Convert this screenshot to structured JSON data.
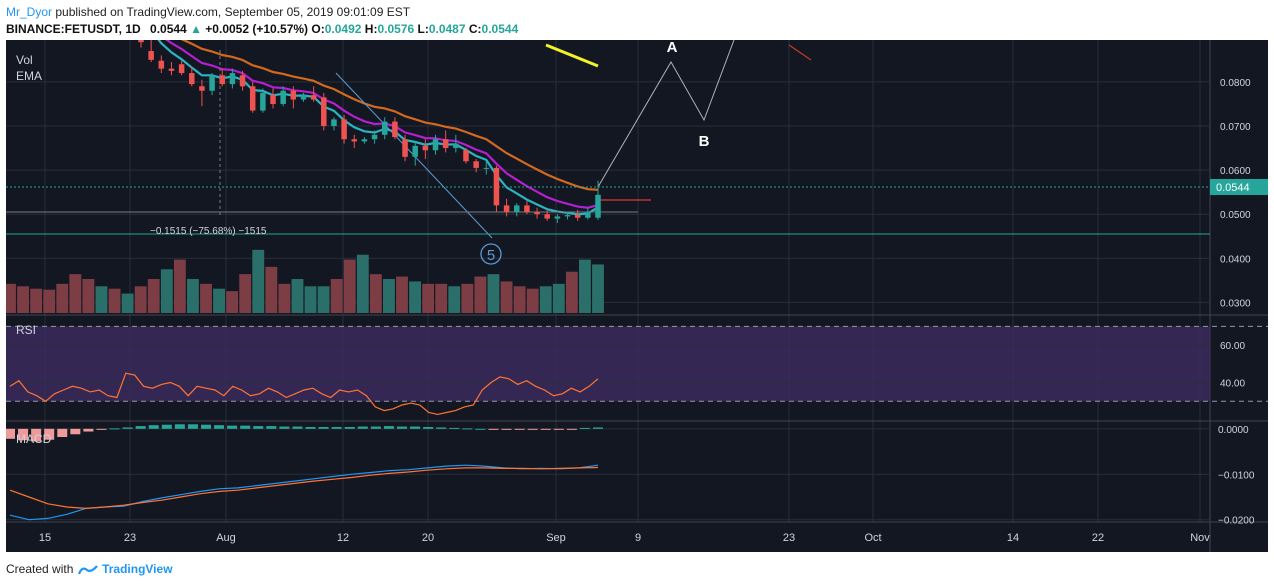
{
  "header": {
    "user": "Mr_Dyor",
    "published": "published on TradingView.com, September 05, 2019 09:01:09 EST",
    "symbol": "BINANCE:FETUSDT, 1D",
    "last": "0.0544",
    "change": "+0.0052 (+10.57%)",
    "o_label": "O:",
    "o": "0.0492",
    "h_label": "H:",
    "h": "0.0576",
    "l_label": "L:",
    "l": "0.0487",
    "c_label": "C:",
    "c": "0.0544"
  },
  "footer": {
    "created": "Created with",
    "brand": "TradingView"
  },
  "colors": {
    "bg": "#131722",
    "grid": "#2a2e39",
    "up": "#26a69a",
    "down": "#ef5350",
    "ema_fast": "#2bb5c3",
    "ema_mid": "#b31fd1",
    "ema_slow": "#d2691e",
    "yellow": "#f2f228",
    "rsi_line": "#ff7433",
    "rsi_band": "#3b2a5c",
    "macd_line": "#2196f3",
    "signal_line": "#ff7433",
    "price_label": "#26a69a"
  },
  "chart_data": [
    {
      "type": "candlestick",
      "title": "BINANCE:FETUSDT, 1D",
      "pane_labels": [
        "Vol",
        "EMA"
      ],
      "x_tick_labels": [
        "15",
        "23",
        "Aug",
        "12",
        "20",
        "Sep",
        "9",
        "23",
        "Oct",
        "14",
        "22",
        "Nov"
      ],
      "y_tick_labels": [
        "0.0800",
        "0.0700",
        "0.0600",
        "0.0500",
        "0.0400",
        "0.0300"
      ],
      "ylim": [
        0.0276,
        0.0895
      ],
      "last_price_label": "0.0544",
      "annotations": {
        "measure": "−0.1515 (−75.68%) −1515",
        "wave_5": "5",
        "label_a": "A",
        "label_b": "B"
      },
      "candles": [
        {
          "o": 0.0905,
          "h": 0.0915,
          "l": 0.0878,
          "c": 0.089
        },
        {
          "o": 0.087,
          "h": 0.0905,
          "l": 0.0845,
          "c": 0.085
        },
        {
          "o": 0.0848,
          "h": 0.086,
          "l": 0.082,
          "c": 0.083
        },
        {
          "o": 0.083,
          "h": 0.0845,
          "l": 0.0815,
          "c": 0.0825
        },
        {
          "o": 0.084,
          "h": 0.0848,
          "l": 0.0815,
          "c": 0.082
        },
        {
          "o": 0.082,
          "h": 0.0835,
          "l": 0.079,
          "c": 0.0795
        },
        {
          "o": 0.079,
          "h": 0.0805,
          "l": 0.0745,
          "c": 0.078
        },
        {
          "o": 0.078,
          "h": 0.082,
          "l": 0.077,
          "c": 0.0815
        },
        {
          "o": 0.0815,
          "h": 0.083,
          "l": 0.079,
          "c": 0.0795
        },
        {
          "o": 0.0795,
          "h": 0.083,
          "l": 0.0785,
          "c": 0.082
        },
        {
          "o": 0.0815,
          "h": 0.0825,
          "l": 0.078,
          "c": 0.079
        },
        {
          "o": 0.079,
          "h": 0.08,
          "l": 0.073,
          "c": 0.0735
        },
        {
          "o": 0.0735,
          "h": 0.0785,
          "l": 0.073,
          "c": 0.0775
        },
        {
          "o": 0.077,
          "h": 0.0785,
          "l": 0.074,
          "c": 0.075
        },
        {
          "o": 0.075,
          "h": 0.079,
          "l": 0.0745,
          "c": 0.078
        },
        {
          "o": 0.078,
          "h": 0.079,
          "l": 0.074,
          "c": 0.076
        },
        {
          "o": 0.076,
          "h": 0.0775,
          "l": 0.0755,
          "c": 0.077
        },
        {
          "o": 0.077,
          "h": 0.079,
          "l": 0.0755,
          "c": 0.076
        },
        {
          "o": 0.0765,
          "h": 0.0775,
          "l": 0.069,
          "c": 0.07
        },
        {
          "o": 0.07,
          "h": 0.072,
          "l": 0.069,
          "c": 0.0715
        },
        {
          "o": 0.0715,
          "h": 0.0725,
          "l": 0.066,
          "c": 0.067
        },
        {
          "o": 0.067,
          "h": 0.068,
          "l": 0.065,
          "c": 0.0665
        },
        {
          "o": 0.0665,
          "h": 0.0675,
          "l": 0.066,
          "c": 0.067
        },
        {
          "o": 0.067,
          "h": 0.069,
          "l": 0.066,
          "c": 0.068
        },
        {
          "o": 0.068,
          "h": 0.072,
          "l": 0.067,
          "c": 0.071
        },
        {
          "o": 0.071,
          "h": 0.072,
          "l": 0.067,
          "c": 0.0675
        },
        {
          "o": 0.067,
          "h": 0.068,
          "l": 0.062,
          "c": 0.063
        },
        {
          "o": 0.063,
          "h": 0.0665,
          "l": 0.061,
          "c": 0.0655
        },
        {
          "o": 0.0655,
          "h": 0.067,
          "l": 0.0625,
          "c": 0.0645
        },
        {
          "o": 0.0645,
          "h": 0.068,
          "l": 0.0635,
          "c": 0.067
        },
        {
          "o": 0.067,
          "h": 0.069,
          "l": 0.064,
          "c": 0.065
        },
        {
          "o": 0.065,
          "h": 0.068,
          "l": 0.064,
          "c": 0.066
        },
        {
          "o": 0.0645,
          "h": 0.065,
          "l": 0.0615,
          "c": 0.062
        },
        {
          "o": 0.062,
          "h": 0.0625,
          "l": 0.0595,
          "c": 0.0605
        },
        {
          "o": 0.0605,
          "h": 0.062,
          "l": 0.059,
          "c": 0.0605
        },
        {
          "o": 0.0605,
          "h": 0.061,
          "l": 0.0505,
          "c": 0.052
        },
        {
          "o": 0.052,
          "h": 0.0535,
          "l": 0.0495,
          "c": 0.0505
        },
        {
          "o": 0.0505,
          "h": 0.0525,
          "l": 0.0495,
          "c": 0.052
        },
        {
          "o": 0.052,
          "h": 0.053,
          "l": 0.05,
          "c": 0.0505
        },
        {
          "o": 0.0505,
          "h": 0.0515,
          "l": 0.049,
          "c": 0.05
        },
        {
          "o": 0.05,
          "h": 0.051,
          "l": 0.0485,
          "c": 0.049
        },
        {
          "o": 0.049,
          "h": 0.05,
          "l": 0.048,
          "c": 0.0495
        },
        {
          "o": 0.0495,
          "h": 0.0505,
          "l": 0.0488,
          "c": 0.0498
        },
        {
          "o": 0.0498,
          "h": 0.051,
          "l": 0.0485,
          "c": 0.0492
        },
        {
          "o": 0.0492,
          "h": 0.0515,
          "l": 0.0488,
          "c": 0.0505
        },
        {
          "o": 0.0492,
          "h": 0.0576,
          "l": 0.0487,
          "c": 0.0544
        }
      ],
      "volume": [
        60,
        55,
        50,
        48,
        60,
        80,
        70,
        55,
        50,
        40,
        55,
        70,
        90,
        110,
        70,
        60,
        50,
        45,
        80,
        130,
        95,
        60,
        70,
        55,
        55,
        70,
        110,
        120,
        80,
        70,
        75,
        65,
        60,
        60,
        55,
        60,
        75,
        80,
        65,
        55,
        50,
        55,
        60,
        85,
        110,
        100
      ]
    },
    {
      "type": "line",
      "title": "RSI",
      "y_tick_labels": [
        "60.00",
        "40.00"
      ],
      "ylim": [
        20,
        75
      ],
      "levels": [
        70,
        30
      ],
      "series": [
        {
          "values": [
            38,
            41,
            35,
            33,
            30,
            34,
            36,
            38,
            37,
            35,
            36,
            33,
            32,
            45,
            44,
            38,
            37,
            39,
            40,
            38,
            33,
            38,
            37,
            36,
            33,
            38,
            36,
            33,
            34,
            37,
            35,
            32,
            34,
            36,
            37,
            34,
            32,
            36,
            35,
            36,
            33,
            27,
            25,
            26,
            28,
            29,
            28,
            24,
            23,
            24,
            25,
            27,
            28,
            36,
            40,
            43,
            42,
            39,
            41,
            38,
            36,
            33,
            34,
            37,
            35,
            38,
            42
          ]
        }
      ]
    },
    {
      "type": "bar",
      "title": "MACD",
      "y_tick_labels": [
        "0.0000",
        "−0.0100",
        "−0.0200"
      ],
      "ylim": [
        -0.0205,
        0.0015
      ],
      "histogram": [
        -0.0022,
        -0.0025,
        -0.0028,
        -0.0024,
        -0.0018,
        -0.0012,
        -0.0006,
        -0.0002,
        0.0001,
        0.0003,
        0.0006,
        0.0008,
        0.0009,
        0.001,
        0.001,
        0.0009,
        0.0008,
        0.0007,
        0.0007,
        0.0006,
        0.0006,
        0.0005,
        0.0005,
        0.0004,
        0.0004,
        0.0004,
        0.0004,
        0.0005,
        0.0005,
        0.0006,
        0.0005,
        0.0005,
        0.0004,
        0.0003,
        0.0002,
        0.0001,
        0.0,
        -0.0001,
        -0.0002,
        -0.0002,
        -0.0002,
        -0.0002,
        -0.0001,
        -0.0001,
        0.0002,
        0.0003
      ],
      "series": [
        {
          "values": [
            -0.019,
            -0.02,
            -0.0197,
            -0.0188,
            -0.0175,
            -0.0172,
            -0.017,
            -0.016,
            -0.0152,
            -0.0145,
            -0.0138,
            -0.0132,
            -0.013,
            -0.0125,
            -0.012,
            -0.0115,
            -0.011,
            -0.0105,
            -0.01,
            -0.0096,
            -0.0092,
            -0.009,
            -0.0086,
            -0.0082,
            -0.008,
            -0.0082,
            -0.0086,
            -0.0088,
            -0.0087,
            -0.0088,
            -0.0086,
            -0.008
          ]
        },
        {
          "values": [
            -0.0135,
            -0.015,
            -0.0165,
            -0.0172,
            -0.0175,
            -0.0172,
            -0.0168,
            -0.0162,
            -0.0157,
            -0.015,
            -0.0143,
            -0.0138,
            -0.0135,
            -0.013,
            -0.0125,
            -0.012,
            -0.0115,
            -0.0111,
            -0.0107,
            -0.0102,
            -0.0098,
            -0.0095,
            -0.0091,
            -0.0088,
            -0.0086,
            -0.0086,
            -0.0087,
            -0.0087,
            -0.0088,
            -0.0087,
            -0.0086,
            -0.0085
          ]
        }
      ]
    }
  ]
}
